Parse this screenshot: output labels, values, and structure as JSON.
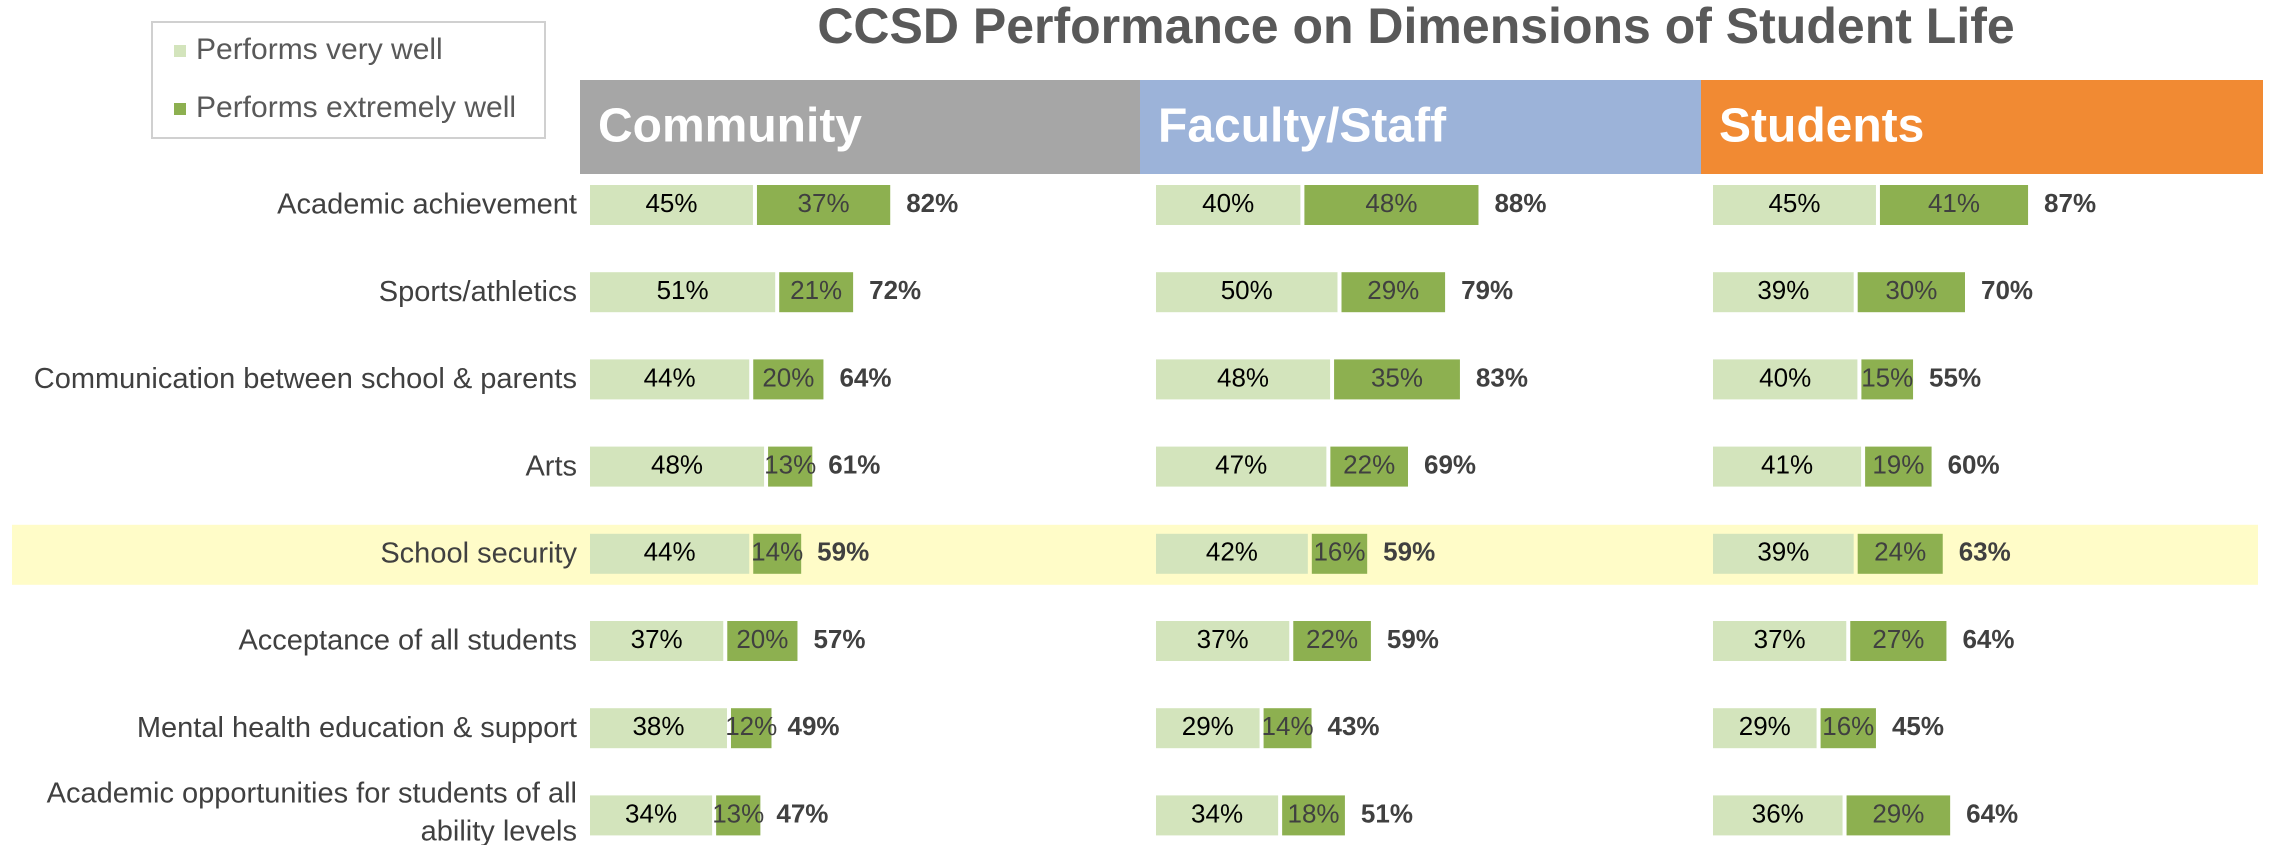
{
  "title": "CCSD Performance on Dimensions of Student Life",
  "highlight_index": 4,
  "highlight_color": "#fffcc8",
  "chart_data": [
    {
      "type": "bar",
      "title": "Community",
      "header_color": "#a6a6a6",
      "categories": [
        "Academic achievement",
        "Sports/athletics",
        "Communication between school & parents",
        "Arts",
        "School security",
        "Acceptance of all students",
        "Mental health education & support",
        "Academic opportunities for students of all ability levels"
      ],
      "series": [
        {
          "name": "Performs very well",
          "color": "#d3e4bc",
          "values": [
            45,
            51,
            44,
            48,
            44,
            37,
            38,
            34
          ],
          "value_labels": [
            "45%",
            "51%",
            "44%",
            "48%",
            "44%",
            "37%",
            "38%",
            "34%"
          ]
        },
        {
          "name": "Performs extremely well",
          "color": "#8db050",
          "values": [
            37,
            21,
            20,
            13,
            14,
            20,
            12,
            13
          ],
          "value_labels": [
            "37%",
            "21%",
            "20%",
            "13%",
            "14%",
            "20%",
            "12%",
            "13%"
          ]
        }
      ],
      "totals": [
        82,
        72,
        64,
        61,
        59,
        57,
        49,
        47
      ],
      "total_labels": [
        "82%",
        "72%",
        "64%",
        "61%",
        "59%",
        "57%",
        "49%",
        "47%"
      ]
    },
    {
      "type": "bar",
      "title": "Faculty/Staff",
      "header_color": "#9cb3d9",
      "series": [
        {
          "color": "#d3e4bc",
          "values": [
            40,
            50,
            48,
            47,
            42,
            37,
            29,
            34
          ],
          "value_labels": [
            "40%",
            "50%",
            "48%",
            "47%",
            "42%",
            "37%",
            "29%",
            "34%"
          ]
        },
        {
          "color": "#8db050",
          "values": [
            48,
            29,
            35,
            22,
            16,
            22,
            14,
            18
          ],
          "value_labels": [
            "48%",
            "29%",
            "35%",
            "22%",
            "16%",
            "22%",
            "14%",
            "18%"
          ]
        }
      ],
      "totals": [
        88,
        79,
        83,
        69,
        59,
        59,
        43,
        51
      ],
      "total_labels": [
        "88%",
        "79%",
        "83%",
        "69%",
        "59%",
        "59%",
        "43%",
        "51%"
      ]
    },
    {
      "type": "bar",
      "title": "Students",
      "header_color": "#f18a33",
      "series": [
        {
          "color": "#d3e4bc",
          "values": [
            45,
            39,
            40,
            41,
            39,
            37,
            29,
            36
          ],
          "value_labels": [
            "45%",
            "39%",
            "40%",
            "41%",
            "39%",
            "37%",
            "29%",
            "36%"
          ]
        },
        {
          "color": "#8db050",
          "values": [
            41,
            30,
            15,
            19,
            24,
            27,
            16,
            29
          ],
          "value_labels": [
            "41%",
            "30%",
            "15%",
            "19%",
            "24%",
            "27%",
            "16%",
            "29%"
          ]
        }
      ],
      "totals": [
        87,
        70,
        55,
        60,
        63,
        64,
        45,
        64
      ],
      "total_labels": [
        "87%",
        "70%",
        "55%",
        "60%",
        "63%",
        "64%",
        "45%",
        "64%"
      ]
    }
  ]
}
